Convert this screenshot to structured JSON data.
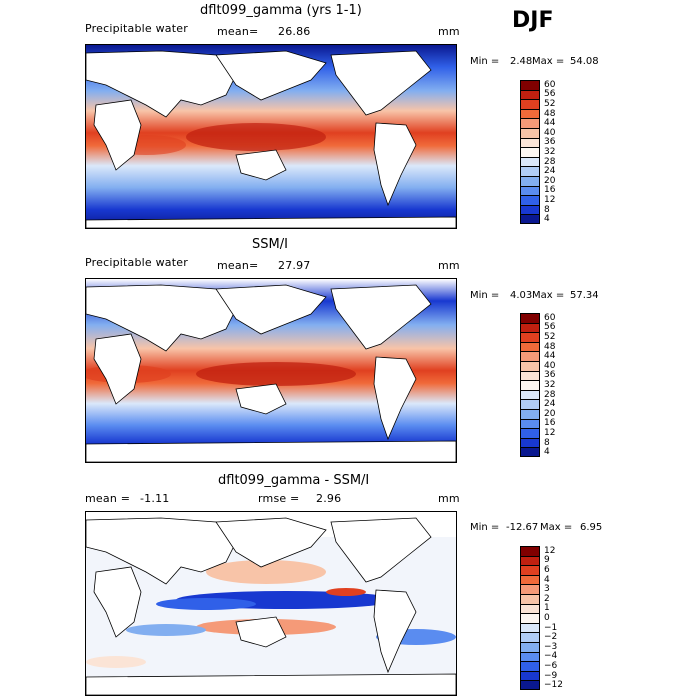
{
  "season": "DJF",
  "panels": [
    {
      "title": "dflt099_gamma (yrs 1-1)",
      "left_label": "Precipitable water",
      "stat_label": "mean=",
      "stat_value": "26.86",
      "units": "mm",
      "min_label": "Min =",
      "min_value": "2.48",
      "max_label": "Max =",
      "max_value": "54.08",
      "levels": [
        "60",
        "56",
        "52",
        "48",
        "44",
        "40",
        "36",
        "32",
        "28",
        "24",
        "20",
        "16",
        "12",
        "8",
        "4"
      ],
      "colors": [
        "#800000",
        "#c02010",
        "#e04020",
        "#f06a3a",
        "#f59a78",
        "#f8c4a8",
        "#fbe4d6",
        "#fdf7f2",
        "#dbe8fa",
        "#b0cdf6",
        "#82aef0",
        "#5a8cf0",
        "#3060e8",
        "#1838d0",
        "#0a1890"
      ]
    },
    {
      "title": "SSM/I",
      "left_label": "Precipitable water",
      "stat_label": "mean=",
      "stat_value": "27.97",
      "units": "mm",
      "min_label": "Min =",
      "min_value": "4.03",
      "max_label": "Max =",
      "max_value": "57.34",
      "levels": [
        "60",
        "56",
        "52",
        "48",
        "44",
        "40",
        "36",
        "32",
        "28",
        "24",
        "20",
        "16",
        "12",
        "8",
        "4"
      ],
      "colors": [
        "#800000",
        "#c02010",
        "#e04020",
        "#f06a3a",
        "#f59a78",
        "#f8c4a8",
        "#fbe4d6",
        "#fdf7f2",
        "#dbe8fa",
        "#b0cdf6",
        "#82aef0",
        "#5a8cf0",
        "#3060e8",
        "#1838d0",
        "#0a1890"
      ]
    },
    {
      "title": "dflt099_gamma - SSM/I",
      "left_label": "mean =",
      "left_value": "-1.11",
      "stat_label": "rmse =",
      "stat_value": "2.96",
      "units": "mm",
      "min_label": "Min =",
      "min_value": "-12.67",
      "max_label": "Max =",
      "max_value": "6.95",
      "levels": [
        "12",
        "9",
        "6",
        "4",
        "3",
        "2",
        "1",
        "0",
        "−1",
        "−2",
        "−3",
        "−4",
        "−6",
        "−9",
        "−12"
      ],
      "colors": [
        "#800000",
        "#c02010",
        "#e04020",
        "#f06a3a",
        "#f59a78",
        "#f8c4a8",
        "#fbe4d6",
        "#fdf7f2",
        "#dbe8fa",
        "#b0cdf6",
        "#82aef0",
        "#5a8cf0",
        "#3060e8",
        "#1838d0",
        "#0a1890"
      ]
    }
  ]
}
